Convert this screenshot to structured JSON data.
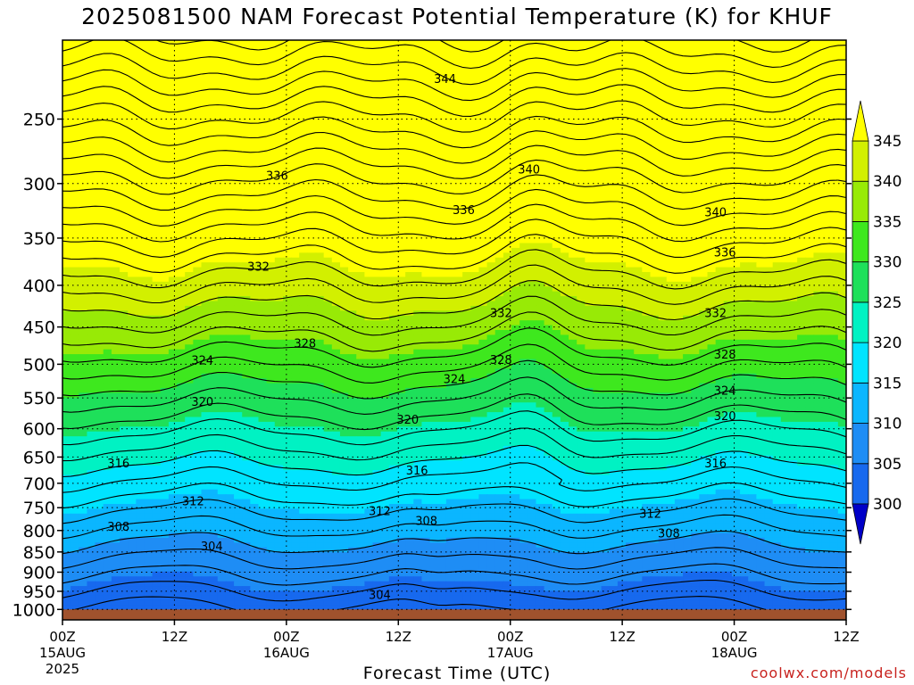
{
  "page": {
    "title": "2025081500 NAM Forecast Potential Temperature (K) for KHUF",
    "xlabel": "Forecast Time (UTC)",
    "credit": "coolwx.com/models"
  },
  "chart_data": {
    "type": "heatmap",
    "title": "2025081500 NAM Forecast Potential Temperature (K) for KHUF",
    "xlabel": "Forecast Time (UTC)",
    "ylabel": "",
    "x_range_hours": [
      0,
      84
    ],
    "y_range_hpa": [
      1030,
      200
    ],
    "y_scale": "log",
    "grid": true,
    "y_ticks": [
      250,
      300,
      350,
      400,
      450,
      500,
      550,
      600,
      650,
      700,
      750,
      800,
      850,
      900,
      950,
      1000
    ],
    "x_ticks": [
      {
        "hour": 0,
        "label": "00Z",
        "date": "15AUG",
        "year": "2025"
      },
      {
        "hour": 12,
        "label": "12Z",
        "date": "",
        "year": ""
      },
      {
        "hour": 24,
        "label": "00Z",
        "date": "16AUG",
        "year": ""
      },
      {
        "hour": 36,
        "label": "12Z",
        "date": "",
        "year": ""
      },
      {
        "hour": 48,
        "label": "00Z",
        "date": "17AUG",
        "year": ""
      },
      {
        "hour": 60,
        "label": "12Z",
        "date": "",
        "year": ""
      },
      {
        "hour": 72,
        "label": "00Z",
        "date": "18AUG",
        "year": ""
      },
      {
        "hour": 84,
        "label": "12Z",
        "date": "",
        "year": ""
      }
    ],
    "colorbar": {
      "levels": [
        300,
        305,
        310,
        315,
        320,
        325,
        330,
        335,
        340,
        345
      ],
      "labels": [
        "300",
        "305",
        "310",
        "315",
        "320",
        "325",
        "330",
        "335",
        "340",
        "345"
      ],
      "colors": [
        "#0042ff",
        "#1769ee",
        "#1e8df5",
        "#0bb6ff",
        "#00e4ff",
        "#00f2c3",
        "#1ee05a",
        "#3ee81e",
        "#98ea06",
        "#d2f000",
        "#ffff00"
      ],
      "under_color": "#0000c8",
      "over_color": "#ffff00"
    },
    "ground_color": "#a0522d",
    "contour_interval": 2,
    "contour_labels": [
      {
        "hour": 41,
        "p": 223,
        "value": "344"
      },
      {
        "hour": 23,
        "p": 293,
        "value": "336"
      },
      {
        "hour": 50,
        "p": 288,
        "value": "340"
      },
      {
        "hour": 43,
        "p": 323,
        "value": "336"
      },
      {
        "hour": 70,
        "p": 325,
        "value": "340"
      },
      {
        "hour": 71,
        "p": 364,
        "value": "336"
      },
      {
        "hour": 21,
        "p": 379,
        "value": "332"
      },
      {
        "hour": 47,
        "p": 432,
        "value": "332"
      },
      {
        "hour": 70,
        "p": 432,
        "value": "332"
      },
      {
        "hour": 26,
        "p": 471,
        "value": "328"
      },
      {
        "hour": 47,
        "p": 493,
        "value": "328"
      },
      {
        "hour": 71,
        "p": 486,
        "value": "328"
      },
      {
        "hour": 15,
        "p": 494,
        "value": "324"
      },
      {
        "hour": 42,
        "p": 521,
        "value": "324"
      },
      {
        "hour": 71,
        "p": 538,
        "value": "324"
      },
      {
        "hour": 15,
        "p": 555,
        "value": "320"
      },
      {
        "hour": 37,
        "p": 584,
        "value": "320"
      },
      {
        "hour": 71,
        "p": 578,
        "value": "320"
      },
      {
        "hour": 6,
        "p": 661,
        "value": "316"
      },
      {
        "hour": 38,
        "p": 674,
        "value": "316"
      },
      {
        "hour": 70,
        "p": 661,
        "value": "316"
      },
      {
        "hour": 14,
        "p": 736,
        "value": "312"
      },
      {
        "hour": 34,
        "p": 756,
        "value": "312"
      },
      {
        "hour": 63,
        "p": 762,
        "value": "312"
      },
      {
        "hour": 6,
        "p": 790,
        "value": "308"
      },
      {
        "hour": 39,
        "p": 778,
        "value": "308"
      },
      {
        "hour": 65,
        "p": 805,
        "value": "308"
      },
      {
        "hour": 16,
        "p": 836,
        "value": "304"
      },
      {
        "hour": 34,
        "p": 958,
        "value": "304"
      }
    ]
  }
}
